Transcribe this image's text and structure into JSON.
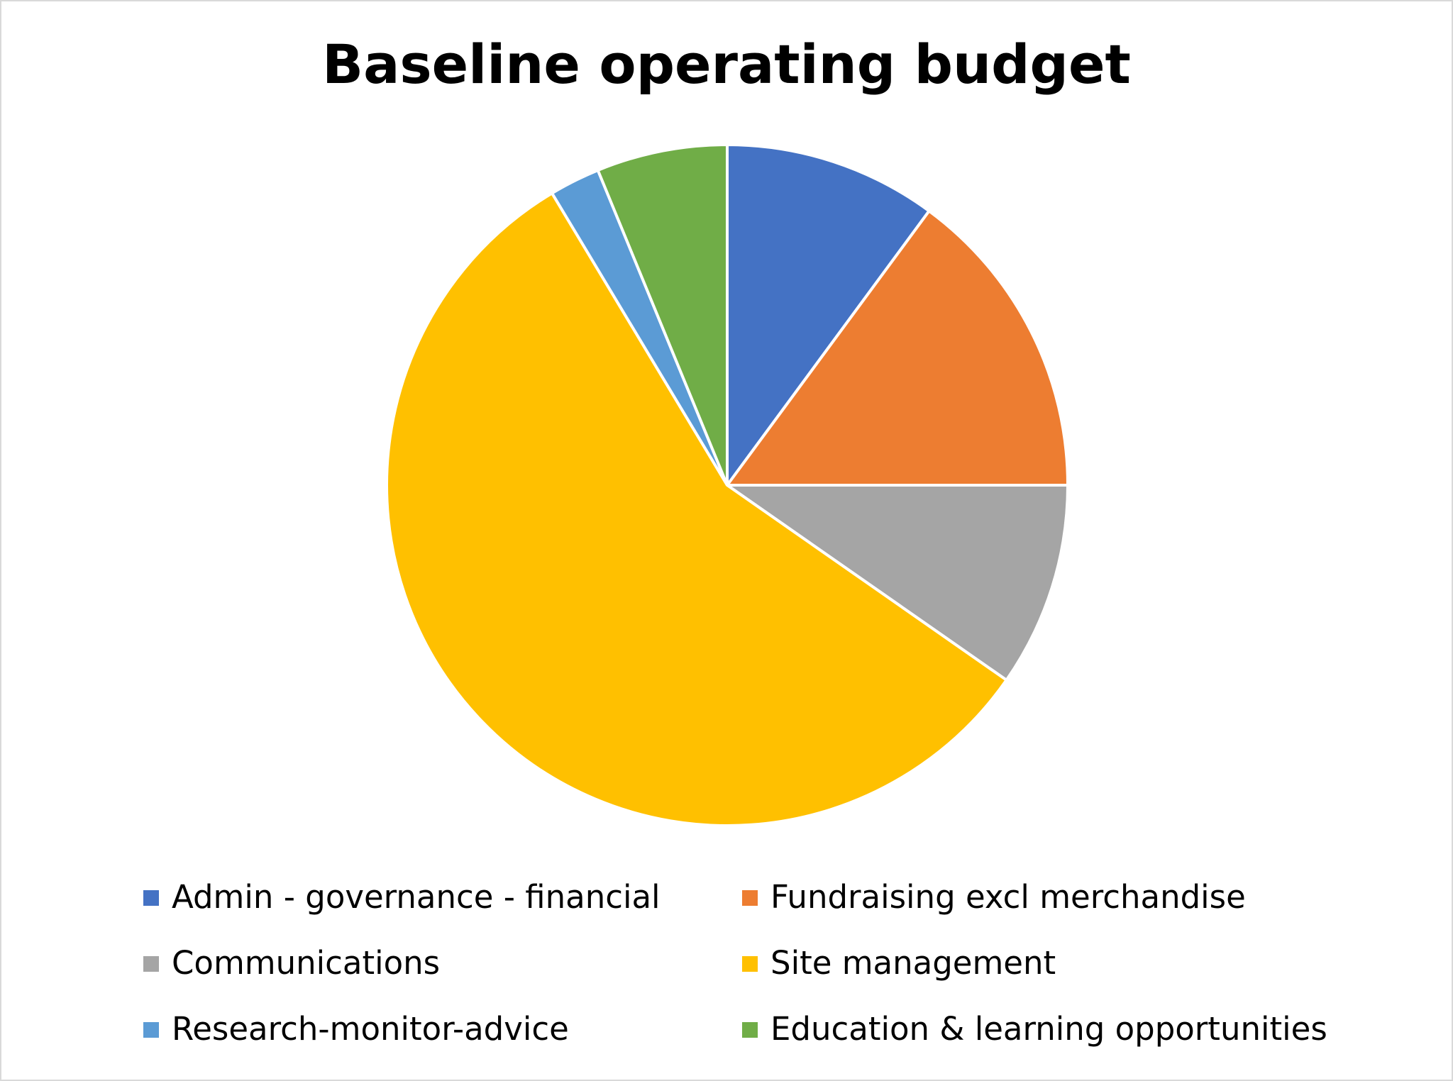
{
  "chart_data": {
    "type": "pie",
    "title": "Baseline operating budget",
    "categories": [
      "Admin - governance - financial",
      "Fundraising excl merchandise",
      "Communications",
      "Site management",
      "Research-monitor-advice",
      "Education & learning opportunities"
    ],
    "values": [
      10.1,
      14.9,
      9.7,
      56.7,
      2.4,
      6.2
    ],
    "colors": [
      "#4472c4",
      "#ed7d31",
      "#a5a5a5",
      "#ffc000",
      "#5b9bd5",
      "#70ad47"
    ],
    "legend": "bottom"
  }
}
